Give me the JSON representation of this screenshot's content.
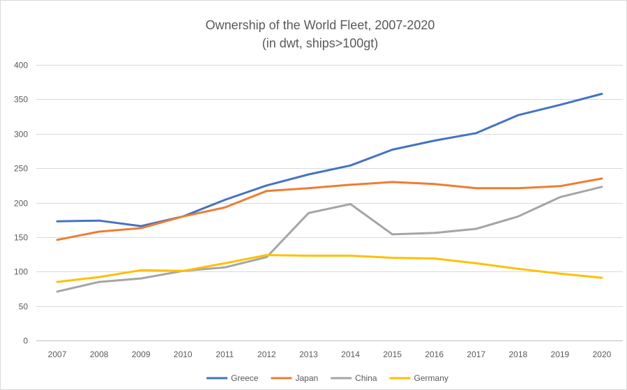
{
  "chart_data": {
    "type": "line",
    "title": "Ownership of the World Fleet, 2007-2020",
    "subtitle": "(in dwt, ships>100gt)",
    "xlabel": "",
    "ylabel": "",
    "categories": [
      "2007",
      "2008",
      "2009",
      "2010",
      "2011",
      "2012",
      "2013",
      "2014",
      "2015",
      "2016",
      "2017",
      "2018",
      "2019",
      "2020"
    ],
    "ylim": [
      0,
      400
    ],
    "yticks": [
      0,
      50,
      100,
      150,
      200,
      250,
      300,
      350,
      400
    ],
    "grid": true,
    "legend": "bottom",
    "series": [
      {
        "name": "Greece",
        "color": "#4472C4",
        "values": [
          173,
          174,
          166,
          180,
          204,
          225,
          241,
          254,
          277,
          290,
          301,
          327,
          342,
          358
        ]
      },
      {
        "name": "Japan",
        "color": "#ED7D31",
        "values": [
          146,
          158,
          163,
          180,
          193,
          217,
          221,
          226,
          230,
          227,
          221,
          221,
          224,
          235
        ]
      },
      {
        "name": "China",
        "color": "#A5A5A5",
        "values": [
          71,
          85,
          90,
          101,
          106,
          121,
          185,
          198,
          154,
          156,
          162,
          180,
          208,
          223
        ]
      },
      {
        "name": "Germany",
        "color": "#FFC000",
        "values": [
          85,
          92,
          102,
          101,
          112,
          124,
          123,
          123,
          120,
          119,
          112,
          104,
          97,
          91
        ]
      }
    ]
  }
}
